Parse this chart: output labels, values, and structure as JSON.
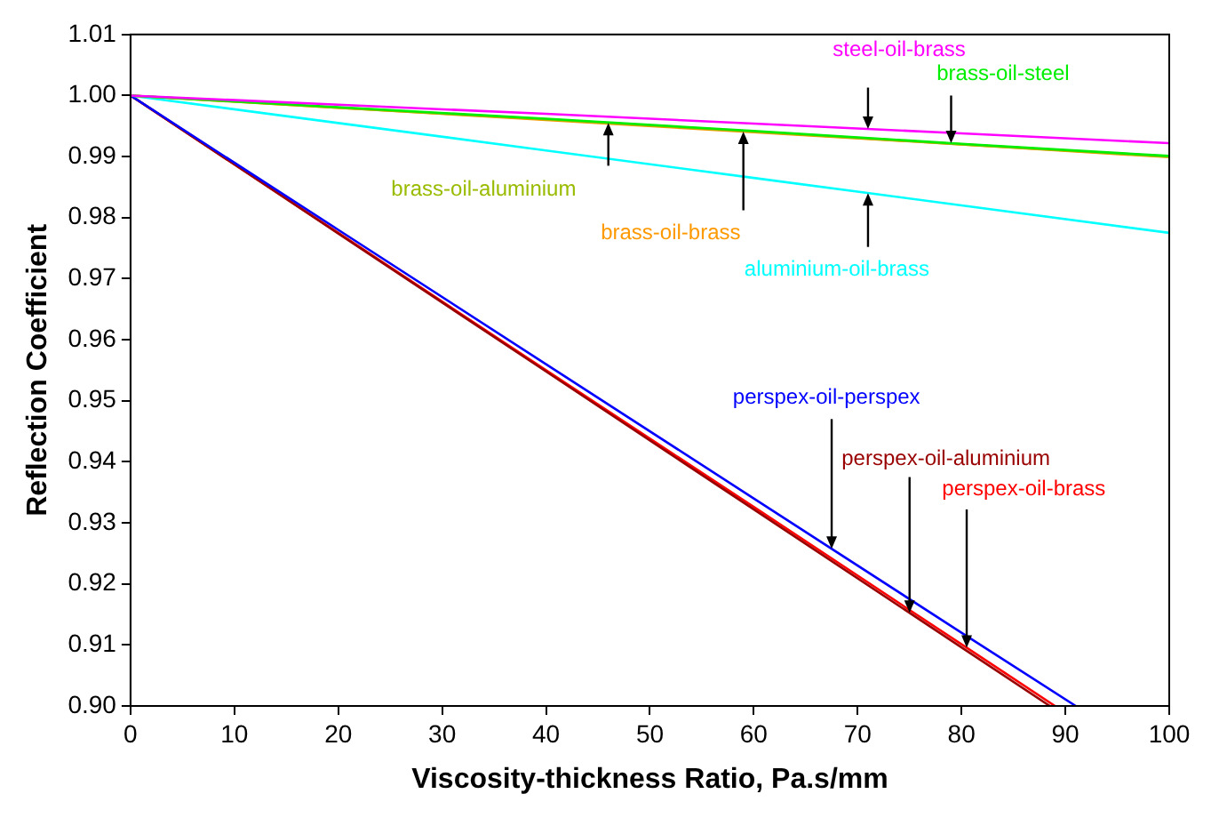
{
  "chart_data": {
    "type": "line",
    "xlabel": "Viscosity-thickness Ratio, Pa.s/mm",
    "ylabel": "Reflection Coefficient",
    "xlim": [
      0,
      100
    ],
    "xticks": [
      0,
      10,
      20,
      30,
      40,
      50,
      60,
      70,
      80,
      90,
      100
    ],
    "ylim": [
      0.9,
      1.01
    ],
    "yticks": [
      {
        "value": 0.9,
        "label": "0.90"
      },
      0.91,
      0.92,
      0.93,
      0.94,
      0.95,
      0.96,
      0.97,
      0.98,
      0.99,
      {
        "value": 1,
        "label": "1.00"
      },
      1.01
    ],
    "grid": false,
    "marker": "none",
    "series": [
      {
        "name": "steel-oil-brass",
        "color": "#ff00ff",
        "x": [
          0,
          20,
          40,
          60,
          80,
          100
        ],
        "values": [
          1.0,
          0.9985,
          0.997,
          0.9954,
          0.9938,
          0.9922
        ]
      },
      {
        "name": "brass-oil-steel",
        "color": "#00ee00",
        "x": [
          0,
          20,
          40,
          60,
          80,
          100
        ],
        "values": [
          1.0,
          0.9981,
          0.9962,
          0.9942,
          0.9921,
          0.9901
        ]
      },
      {
        "name": "brass-oil-aluminium",
        "color": "#99bb00",
        "x": [
          0,
          20,
          40,
          60,
          80,
          100
        ],
        "values": [
          1.0,
          0.998,
          0.9961,
          0.9941,
          0.992,
          0.99
        ]
      },
      {
        "name": "brass-oil-brass",
        "color": "#ff9900",
        "x": [
          0,
          20,
          40,
          60,
          80,
          100
        ],
        "values": [
          1.0,
          0.998,
          0.996,
          0.994,
          0.992,
          0.9899
        ]
      },
      {
        "name": "aluminium-oil-brass",
        "color": "#00ffff",
        "x": [
          0,
          20,
          40,
          60,
          80,
          100
        ],
        "values": [
          1.0,
          0.9955,
          0.991,
          0.9865,
          0.982,
          0.9775
        ]
      },
      {
        "name": "perspex-oil-perspex",
        "color": "#0000ff",
        "x": [
          0,
          20,
          40,
          60,
          80,
          91
        ],
        "values": [
          1.0,
          0.978,
          0.956,
          0.934,
          0.912,
          0.9
        ]
      },
      {
        "name": "perspex-oil-aluminium",
        "color": "#990000",
        "x": [
          0,
          20,
          40,
          60,
          80,
          88.5
        ],
        "values": [
          1.0,
          0.9774,
          0.9548,
          0.9322,
          0.9096,
          0.9
        ]
      },
      {
        "name": "perspex-oil-brass",
        "color": "#ff0000",
        "x": [
          0,
          20,
          40,
          60,
          80,
          89
        ],
        "values": [
          1.0,
          0.9775,
          0.955,
          0.9326,
          0.9101,
          0.9
        ]
      }
    ]
  }
}
